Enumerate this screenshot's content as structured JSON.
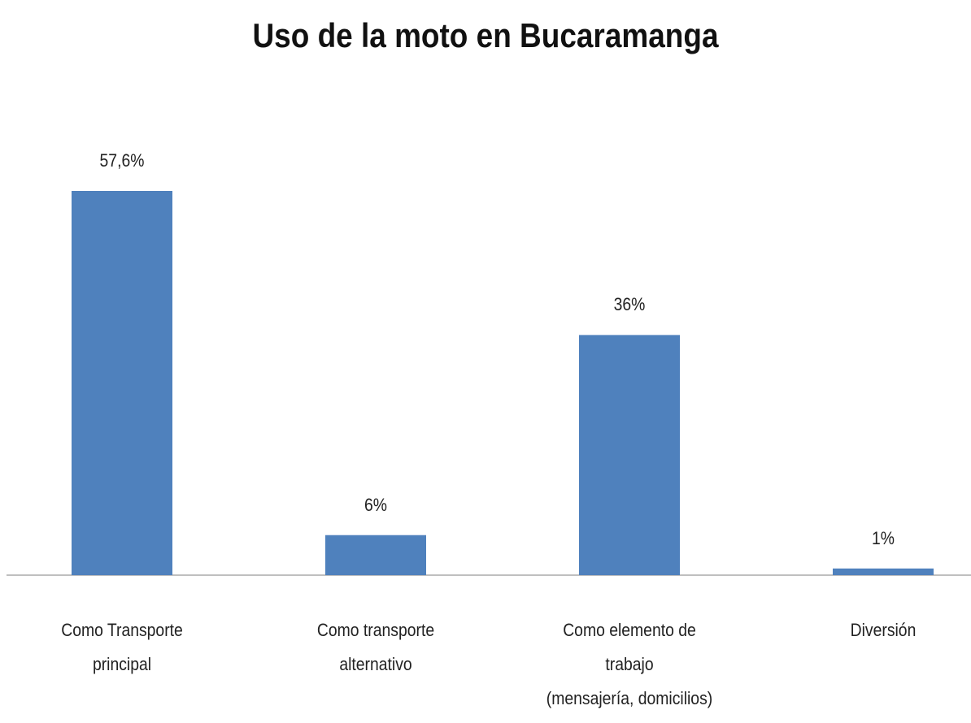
{
  "chart_data": {
    "type": "bar",
    "title": "Uso de la moto en Bucaramanga",
    "categories": [
      "Como Transporte\nprincipal",
      "Como transporte\nalternativo",
      "Como elemento de\ntrabajo\n(mensajería, domicilios)",
      "Diversión"
    ],
    "values": [
      57.6,
      6,
      36,
      1
    ],
    "value_labels": [
      "57,6%",
      "6%",
      "36%",
      "1%"
    ],
    "color": "#4f81bd"
  }
}
